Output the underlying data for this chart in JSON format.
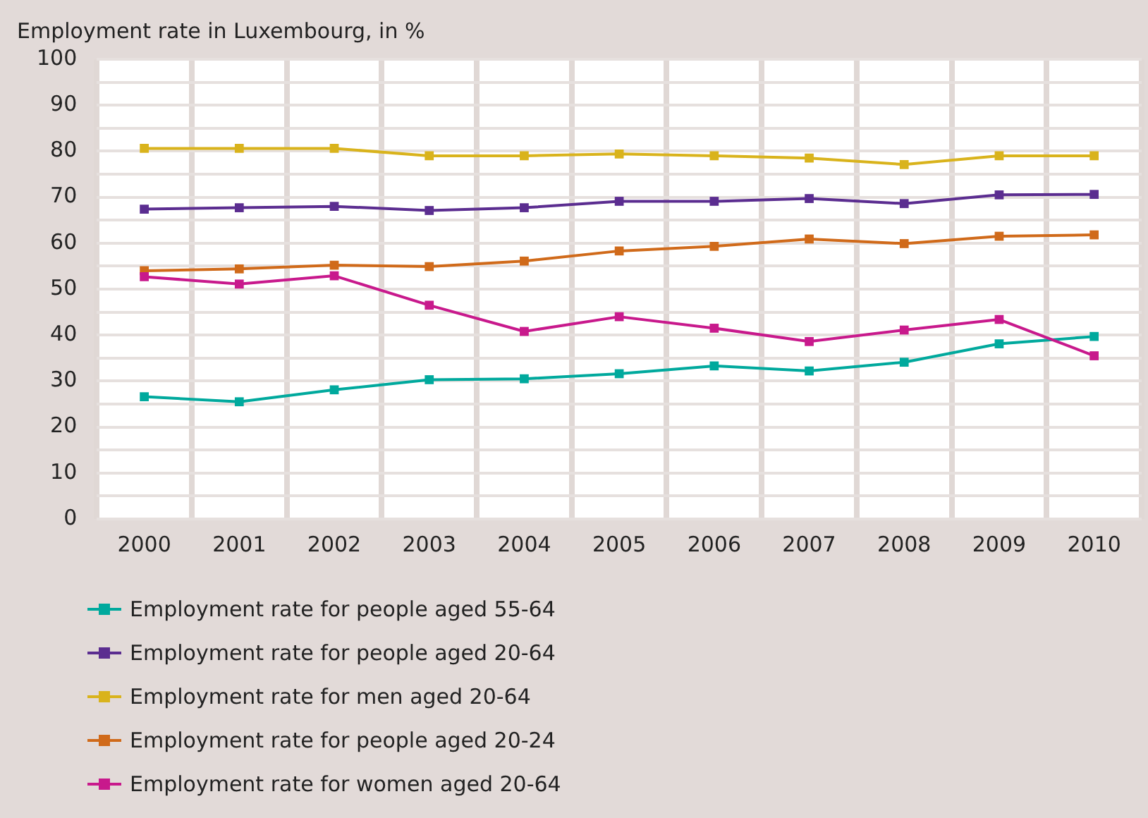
{
  "chart_data": {
    "type": "line",
    "title": "Employment rate in Luxembourg, in %",
    "categories": [
      "2000",
      "2001",
      "2002",
      "2003",
      "2004",
      "2005",
      "2006",
      "2007",
      "2008",
      "2009",
      "2010"
    ],
    "series": [
      {
        "name": "Employment rate for people aged 55-64",
        "color": "#00a99d",
        "values": [
          26.6,
          25.5,
          28.1,
          30.3,
          30.5,
          31.6,
          33.3,
          32.2,
          34.1,
          38.1,
          39.7
        ]
      },
      {
        "name": "Employment rate for people aged 20-64",
        "color": "#5b2d90",
        "values": [
          67.4,
          67.7,
          68.0,
          67.1,
          67.7,
          69.1,
          69.1,
          69.7,
          68.6,
          70.5,
          70.6
        ]
      },
      {
        "name": "Employment rate for men aged 20-64",
        "color": "#d9b31c",
        "values": [
          80.6,
          80.6,
          80.6,
          79.0,
          79.0,
          79.4,
          79.0,
          78.5,
          77.1,
          79.0,
          79.0
        ]
      },
      {
        "name": "Employment rate for people aged 20-24",
        "color": "#d06a1a",
        "values": [
          54.0,
          54.4,
          55.2,
          54.9,
          56.1,
          58.3,
          59.3,
          60.9,
          59.9,
          61.5,
          61.8
        ]
      },
      {
        "name": "Employment rate for women aged 20-64",
        "color": "#c8198c",
        "values": [
          52.7,
          51.1,
          52.9,
          46.5,
          40.8,
          44.0,
          41.5,
          38.6,
          41.1,
          43.4,
          35.5
        ]
      }
    ],
    "ylim": [
      0,
      100
    ],
    "yticks": [
      0,
      {
        "value": 5,
        "label": null
      },
      10,
      {
        "value": 15,
        "label": null
      },
      20,
      {
        "value": 25,
        "label": null
      },
      30,
      {
        "value": 35,
        "label": null
      },
      40,
      {
        "value": 45,
        "label": null
      },
      50,
      {
        "value": 55,
        "label": null
      },
      60,
      {
        "value": 65,
        "label": null
      },
      70,
      {
        "value": 75,
        "label": null
      },
      80,
      {
        "value": 85,
        "label": null
      },
      90,
      {
        "value": 95,
        "label": null
      },
      100
    ],
    "grid": true,
    "legend": "bottom",
    "marker": "square",
    "line_style": "solid"
  }
}
